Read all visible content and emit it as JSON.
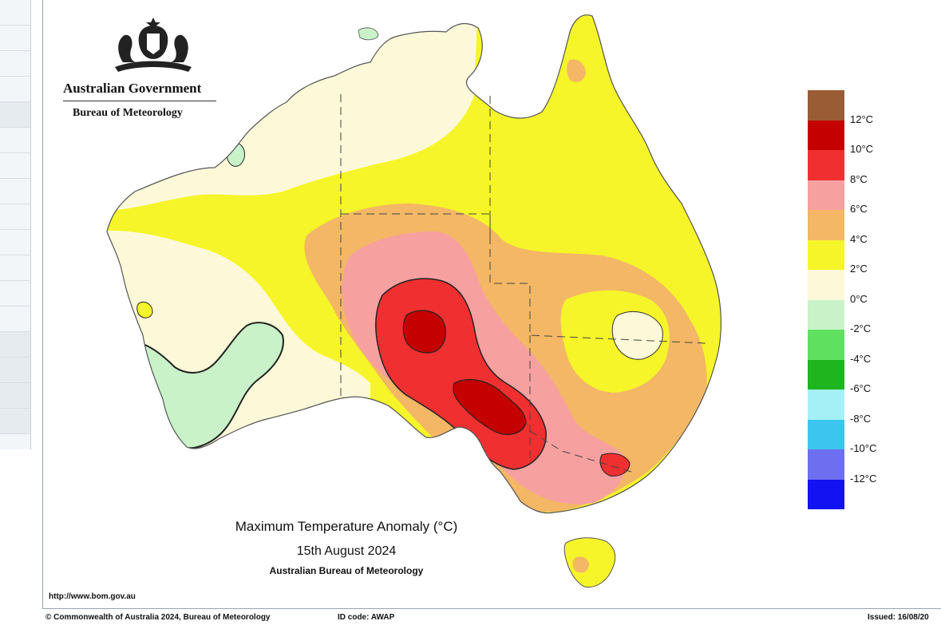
{
  "organisation": {
    "title": "Australian Government",
    "subtitle": "Bureau of Meteorology",
    "crest_icon": "coat-of-arms-icon"
  },
  "map": {
    "title": "Maximum Temperature Anomaly (°C)",
    "date": "15th August 2024",
    "source": "Australian Bureau of Meteorology",
    "url": "http://www.bom.gov.au"
  },
  "legend": {
    "labels": [
      "12°C",
      "10°C",
      "8°C",
      "6°C",
      "4°C",
      "2°C",
      "0°C",
      "-2°C",
      "-4°C",
      "-6°C",
      "-8°C",
      "-10°C",
      "-12°C"
    ],
    "colors": [
      "#9a5c34",
      "#c40000",
      "#f03030",
      "#f7a0a0",
      "#f3b766",
      "#f5f52a",
      "#fdf9d8",
      "#c9f2c9",
      "#5fe05f",
      "#1fb51f",
      "#a5f0f7",
      "#3cc6ef",
      "#6e6ef0",
      "#1212f2"
    ]
  },
  "footer": {
    "copyright": "© Commonwealth of Australia 2024, Bureau of Meteorology",
    "id_code": "ID code: AWAP",
    "issued": "Issued: 16/08/20"
  },
  "anomaly_colors": {
    "cold_lt0": "#c9f2c9",
    "c0_2": "#fdf9d8",
    "c2_4": "#f5f52a",
    "c4_6": "#f3b766",
    "c6_8": "#f7a0a0",
    "c8_10": "#f03030",
    "c10_12": "#c40000"
  }
}
